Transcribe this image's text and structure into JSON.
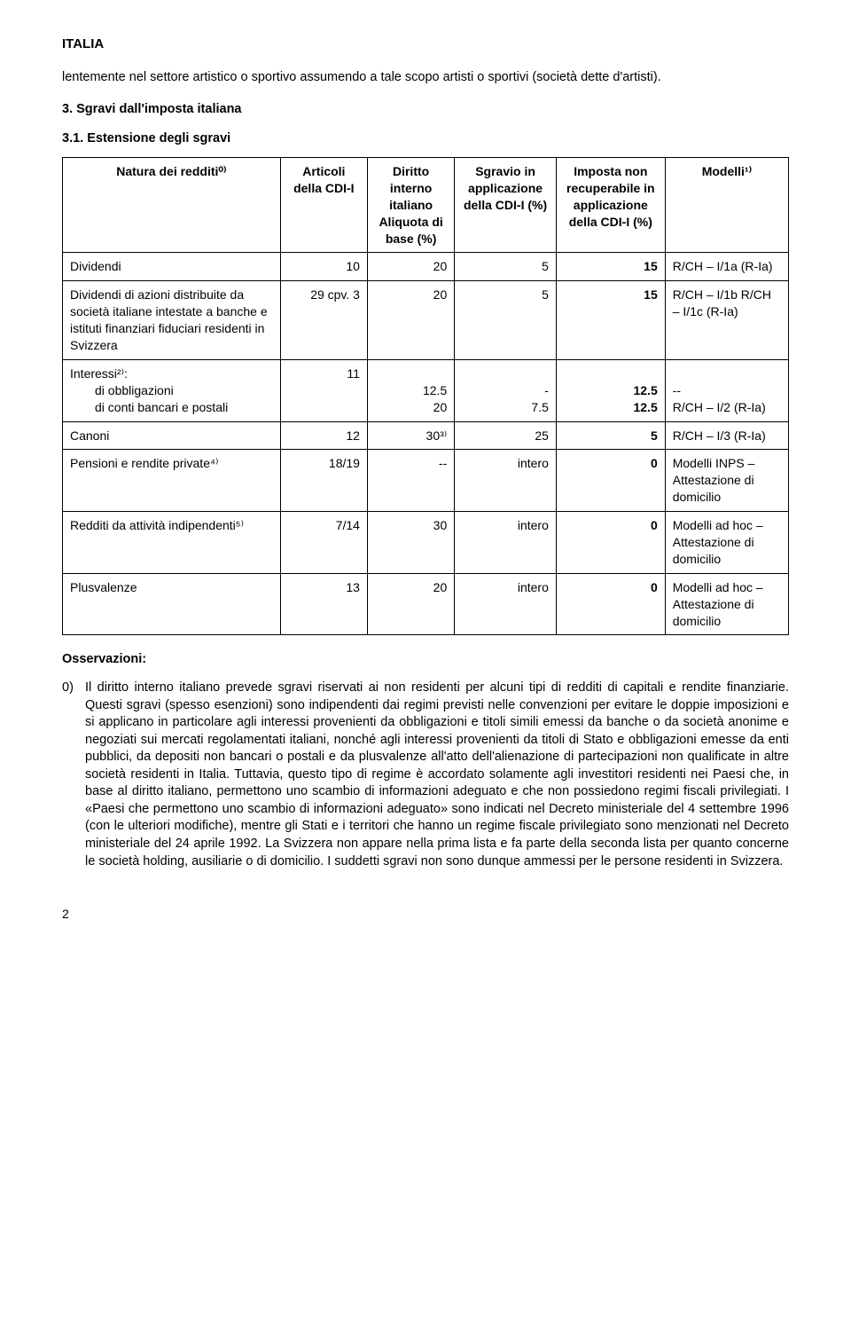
{
  "doc_title": "ITALIA",
  "intro_para": "lentemente nel settore artistico o sportivo assumendo a tale scopo artisti o sportivi (società dette d'artisti).",
  "heading_3": "3. Sgravi dall'imposta italiana",
  "heading_3_1": "3.1. Estensione degli sgravi",
  "table": {
    "head": {
      "c0": "Natura dei redditi⁰⁾",
      "c1": "Articoli della CDI-I",
      "c2": "Diritto interno italiano Aliquota di base (%)",
      "c3": "Sgravio in applicazione della CDI-I (%)",
      "c4": "Imposta non recuperabile in applicazione della CDI-I (%)",
      "c5": "Modelli¹⁾"
    },
    "rows": [
      {
        "c0": "Dividendi",
        "c1": "10",
        "c2": "20",
        "c3": "5",
        "c4": "15",
        "c5": "R/CH – I/1a (R-Ia)"
      },
      {
        "c0": "Dividendi di azioni distribuite da società italiane intestate a banche e istituti finanziari fiduciari residenti in Svizzera",
        "c1": "29 cpv. 3",
        "c2": "20",
        "c3": "5",
        "c4": "15",
        "c5": "R/CH – I/1b R/CH – I/1c (R-Ia)"
      },
      {
        "c0": "Interessi²⁾:",
        "sub": [
          {
            "label": "di obbligazioni",
            "c2": "12.5",
            "c3": "-",
            "c4": "12.5",
            "c5": "--"
          },
          {
            "label": "di conti bancari e postali",
            "c2": "20",
            "c3": "7.5",
            "c4": "12.5",
            "c5": "R/CH – I/2 (R-Ia)"
          }
        ],
        "c1": "11"
      },
      {
        "c0": "Canoni",
        "c1": "12",
        "c2": "30³⁾",
        "c3": "25",
        "c4": "5",
        "c5": "R/CH – I/3 (R-Ia)"
      },
      {
        "c0": "Pensioni e rendite private⁴⁾",
        "c1": "18/19",
        "c2": "--",
        "c3": "intero",
        "c4": "0",
        "c5": "Modelli INPS – Attestazione di domicilio"
      },
      {
        "c0": "Redditi da attività indipendenti⁵⁾",
        "c1": "7/14",
        "c2": "30",
        "c3": "intero",
        "c4": "0",
        "c5": "Modelli ad hoc – Attestazione di domicilio"
      },
      {
        "c0": "Plusvalenze",
        "c1": "13",
        "c2": "20",
        "c3": "intero",
        "c4": "0",
        "c5": "Modelli ad hoc – Attestazione di domicilio"
      }
    ]
  },
  "osserv_title": "Osservazioni:",
  "notes": [
    {
      "idx": "0)",
      "txt": "Il diritto interno italiano prevede sgravi riservati ai non residenti per alcuni tipi di redditi di capitali e rendite finanziarie. Questi sgravi (spesso esenzioni) sono indipendenti dai regimi previsti nelle convenzioni per evitare le doppie imposizioni e si applicano in particolare agli interessi provenienti da obbligazioni e titoli simili emessi da banche o da società anonime e negoziati sui mercati regolamentati italiani, nonché agli interessi provenienti da titoli di Stato e obbligazioni emesse da enti pubblici, da depositi non bancari o postali e da plusvalenze all'atto dell'alienazione di partecipazioni non qualificate in altre società residenti in Italia. Tuttavia, questo tipo di regime è accordato solamente agli investitori residenti nei Paesi che, in base al diritto italiano, permettono uno scambio di informazioni adeguato e che non possiedono regimi fiscali privilegiati. I «Paesi che permettono uno scambio di informazioni adeguato» sono indicati nel Decreto ministeriale del 4 settembre 1996 (con le ulteriori modifiche), mentre gli Stati e i territori che hanno un regime fiscale privilegiato sono menzionati nel Decreto ministeriale del 24 aprile 1992. La Svizzera non appare nella prima lista e fa parte della seconda lista per quanto concerne le società holding, ausiliarie o di domicilio. I suddetti sgravi non sono dunque ammessi per le persone residenti in Svizzera."
    }
  ],
  "page_number": "2"
}
